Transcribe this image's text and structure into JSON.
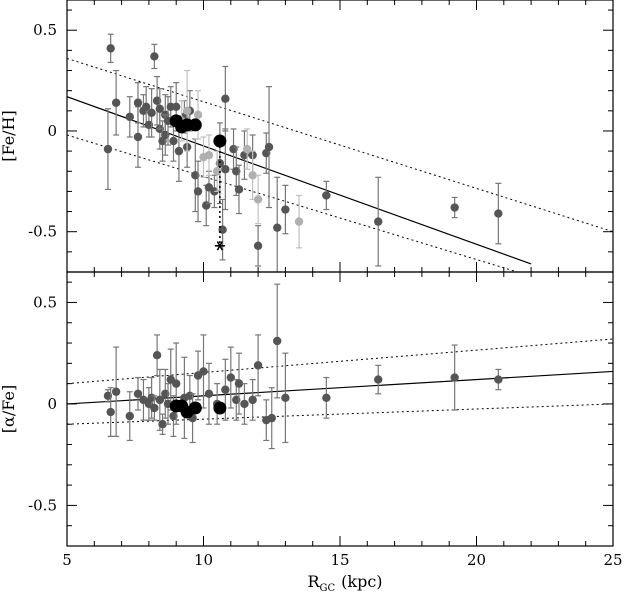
{
  "chart_data": {
    "type": "scatter",
    "x": {
      "label": "R",
      "label_sub": "GC",
      "label_unit": "(kpc)",
      "lim": [
        5,
        25
      ],
      "ticks": [
        5,
        10,
        15,
        20,
        25
      ],
      "tick_labels": [
        "5",
        "10",
        "15",
        "20",
        "25"
      ]
    },
    "panels": [
      {
        "ylabel": "[Fe/H]",
        "ylim": [
          -0.7,
          0.65
        ],
        "yticks": [
          0.5,
          0,
          -0.5
        ],
        "ytick_labels": [
          "0.5",
          "0",
          "-0.5"
        ],
        "fit": [
          [
            5,
            0.17
          ],
          [
            22,
            -0.66
          ]
        ],
        "envelope": [
          [
            [
              5,
              0.36
            ],
            [
              25,
              -0.5
            ]
          ],
          [
            [
              5,
              -0.02
            ],
            [
              21.5,
              -0.7
            ]
          ]
        ],
        "series": [
          {
            "style": "dark",
            "points": [
              [
                6.6,
                0.41,
                0.07
              ],
              [
                6.5,
                -0.09,
                0.2
              ],
              [
                6.8,
                0.14,
                0.16
              ],
              [
                7.3,
                0.07,
                0.1
              ],
              [
                7.6,
                -0.03,
                0.15
              ],
              [
                7.6,
                0.14,
                0.1
              ],
              [
                7.8,
                0.1,
                0.08
              ],
              [
                7.9,
                0.12,
                0.1
              ],
              [
                8.0,
                0.03,
                0.06
              ],
              [
                8.1,
                0.09,
                0.12
              ],
              [
                8.2,
                0.37,
                0.06
              ],
              [
                8.3,
                0.15,
                0.12
              ],
              [
                8.4,
                0.01,
                0.1
              ],
              [
                8.4,
                0.11,
                0.1
              ],
              [
                8.5,
                -0.05,
                0.1
              ],
              [
                8.6,
                0.08,
                0.1
              ],
              [
                8.6,
                -0.02,
                0.1
              ],
              [
                8.7,
                0.05,
                0.12
              ],
              [
                8.8,
                0.12,
                0.1
              ],
              [
                8.9,
                -0.05,
                0.1
              ],
              [
                9.0,
                0.12,
                0.12
              ],
              [
                9.1,
                -0.1,
                0.15
              ],
              [
                9.3,
                0.07,
                0.08
              ],
              [
                9.4,
                -0.08,
                0.1
              ],
              [
                9.5,
                0.1,
                0.1
              ],
              [
                9.7,
                -0.22,
                0.18
              ],
              [
                9.8,
                -0.3,
                0.15
              ],
              [
                10.1,
                -0.37,
                0.1
              ],
              [
                10.2,
                -0.28,
                0.08
              ],
              [
                10.4,
                -0.3,
                0.08
              ],
              [
                10.6,
                -0.16,
                0.2
              ],
              [
                10.7,
                -0.49,
                0.15
              ],
              [
                10.8,
                -0.19,
                0.2
              ],
              [
                10.8,
                0.16,
                0.16
              ],
              [
                11.1,
                -0.09,
                0.1
              ],
              [
                11.2,
                -0.2,
                0.12
              ],
              [
                11.3,
                -0.29,
                0.12
              ],
              [
                11.5,
                -0.12,
                0.12
              ],
              [
                11.8,
                -0.12,
                0.1
              ],
              [
                12.0,
                -0.57,
                0.1
              ],
              [
                12.3,
                -0.11,
                0.1
              ],
              [
                12.4,
                -0.08,
                0.3
              ],
              [
                12.7,
                -0.48,
                0.25
              ],
              [
                13.0,
                -0.39,
                0.12
              ],
              [
                14.5,
                -0.32,
                0.07
              ],
              [
                16.4,
                -0.45,
                0.22
              ],
              [
                19.2,
                -0.38,
                0.05
              ],
              [
                20.8,
                -0.41,
                0.15
              ]
            ]
          },
          {
            "style": "light",
            "points": [
              [
                9.2,
                0.05,
                0.1
              ],
              [
                9.4,
                0.1,
                0.2
              ],
              [
                9.8,
                0.08,
                0.12
              ],
              [
                10.0,
                -0.13,
                0.1
              ],
              [
                10.2,
                -0.12,
                0.1
              ],
              [
                10.5,
                -0.2,
                0.1
              ],
              [
                11.6,
                -0.09,
                0.1
              ],
              [
                11.8,
                -0.22,
                0.12
              ],
              [
                12.0,
                -0.34,
                0.12
              ],
              [
                13.5,
                -0.45,
                0.13
              ]
            ]
          },
          {
            "style": "black-large",
            "points": [
              [
                9.0,
                0.05
              ],
              [
                9.2,
                0.02
              ],
              [
                9.4,
                0.03
              ],
              [
                9.7,
                0.03
              ],
              [
                10.6,
                -0.05
              ]
            ]
          },
          {
            "style": "asterisk",
            "points": [
              [
                10.6,
                -0.57
              ]
            ],
            "link_to": [
              10.6,
              -0.05
            ]
          }
        ]
      },
      {
        "ylabel": "[α/Fe]",
        "ylim": [
          -0.7,
          0.65
        ],
        "yticks": [
          0.5,
          0,
          -0.5
        ],
        "ytick_labels": [
          "0.5",
          "0",
          "-0.5"
        ],
        "fit": [
          [
            5,
            0.0
          ],
          [
            25,
            0.16
          ]
        ],
        "envelope": [
          [
            [
              5,
              0.1
            ],
            [
              25,
              0.32
            ]
          ],
          [
            [
              5,
              -0.1
            ],
            [
              25,
              0.0
            ]
          ]
        ],
        "series": [
          {
            "style": "dark",
            "points": [
              [
                6.5,
                0.04,
                0.03
              ],
              [
                6.6,
                -0.04,
                0.12
              ],
              [
                6.8,
                0.06,
                0.22
              ],
              [
                7.3,
                -0.06,
                0.12
              ],
              [
                7.6,
                0.05,
                0.08
              ],
              [
                7.8,
                0.02,
                0.1
              ],
              [
                8.0,
                0.0,
                0.08
              ],
              [
                8.1,
                0.03,
                0.1
              ],
              [
                8.2,
                -0.02,
                0.06
              ],
              [
                8.3,
                0.24,
                0.1
              ],
              [
                8.4,
                0.02,
                0.15
              ],
              [
                8.5,
                -0.1,
                0.05
              ],
              [
                8.6,
                0.05,
                0.12
              ],
              [
                8.7,
                0.0,
                0.1
              ],
              [
                8.8,
                0.12,
                0.15
              ],
              [
                8.9,
                -0.06,
                0.1
              ],
              [
                9.0,
                0.1,
                0.2
              ],
              [
                9.3,
                0.03,
                0.2
              ],
              [
                9.5,
                0.04,
                0.1
              ],
              [
                9.6,
                -0.07,
                0.12
              ],
              [
                9.8,
                0.14,
                0.12
              ],
              [
                10.0,
                0.16,
                0.18
              ],
              [
                10.2,
                0.05,
                0.15
              ],
              [
                10.5,
                0.0,
                0.1
              ],
              [
                10.8,
                0.07,
                0.15
              ],
              [
                11.0,
                0.13,
                0.15
              ],
              [
                11.2,
                0.02,
                0.1
              ],
              [
                11.3,
                0.1,
                0.15
              ],
              [
                11.5,
                0.0,
                0.1
              ],
              [
                11.8,
                0.02,
                0.1
              ],
              [
                12.0,
                0.19,
                0.15
              ],
              [
                12.3,
                -0.08,
                0.1
              ],
              [
                12.5,
                -0.07,
                0.15
              ],
              [
                12.7,
                0.31,
                0.28
              ],
              [
                13.0,
                0.03,
                0.22
              ],
              [
                14.5,
                0.03,
                0.1
              ],
              [
                16.4,
                0.12,
                0.07
              ],
              [
                19.2,
                0.13,
                0.16
              ],
              [
                20.8,
                0.12,
                0.05
              ]
            ]
          },
          {
            "style": "black-large",
            "points": [
              [
                9.0,
                -0.01
              ],
              [
                9.2,
                -0.01
              ],
              [
                9.4,
                -0.04
              ],
              [
                9.7,
                -0.02
              ],
              [
                10.6,
                -0.02
              ]
            ]
          }
        ]
      }
    ]
  }
}
